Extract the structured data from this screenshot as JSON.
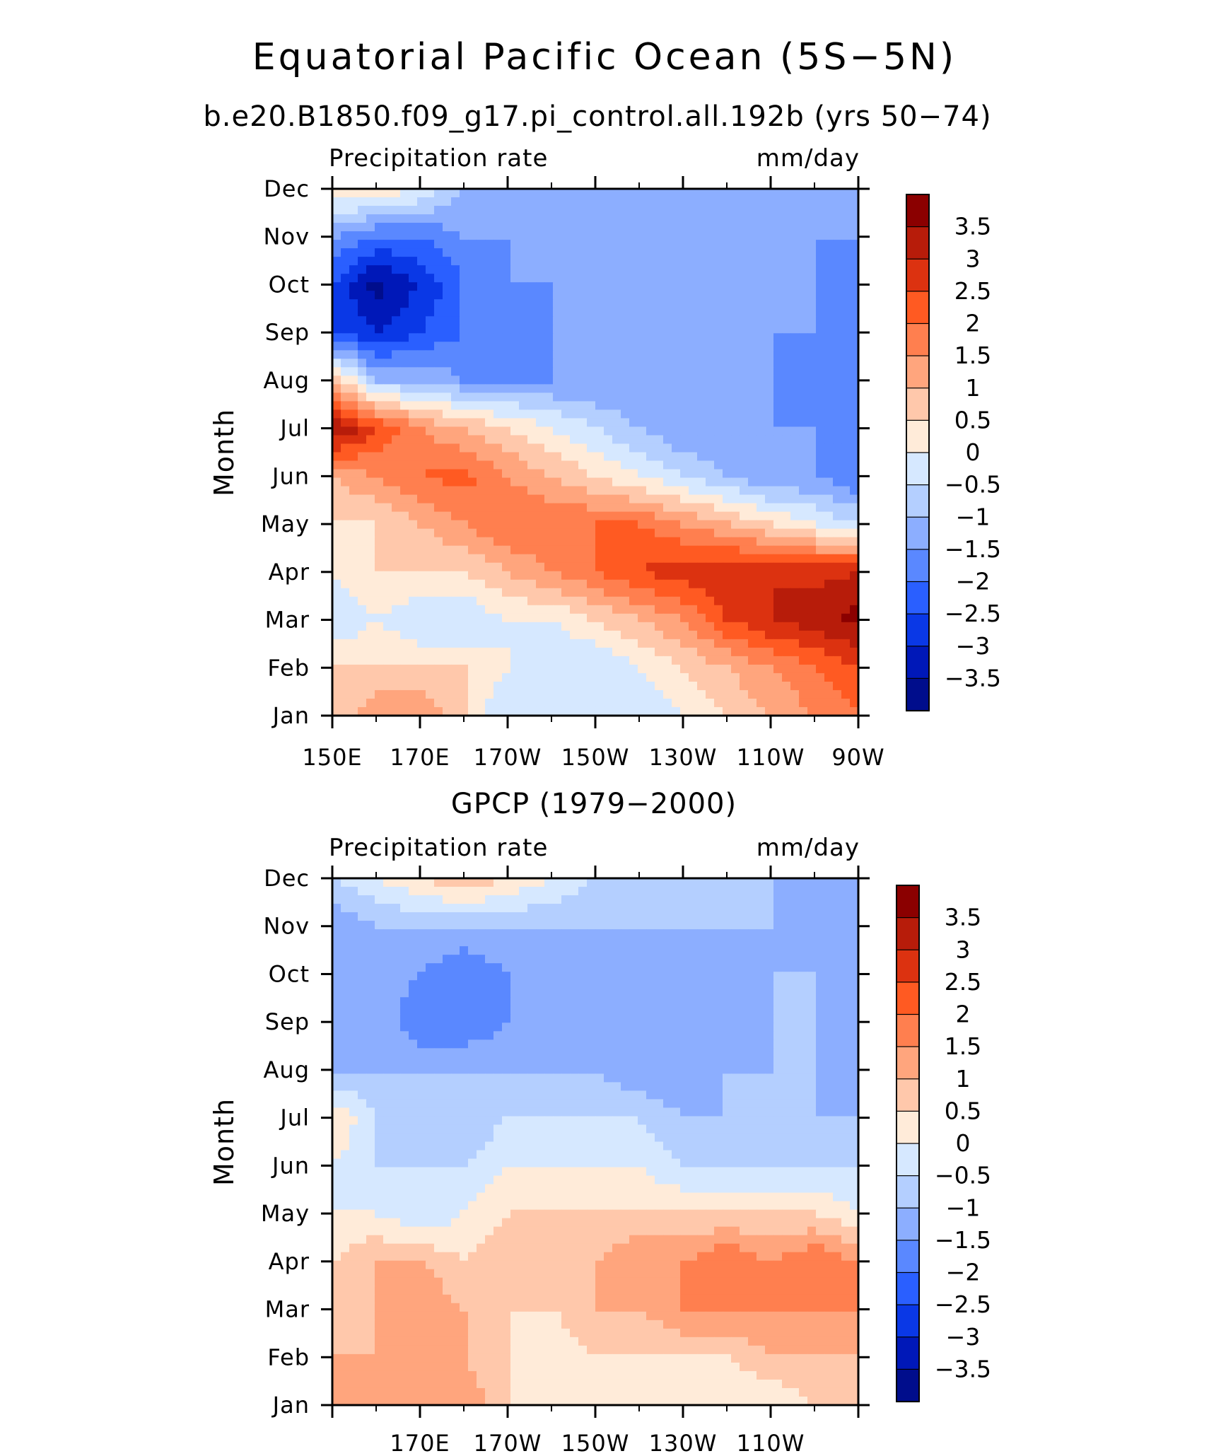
{
  "figure": {
    "title": "Equatorial Pacific Ocean (5S−5N)"
  },
  "colorbar": {
    "levels": [
      "3.5",
      "3",
      "2.5",
      "2",
      "1.5",
      "1",
      "0.5",
      "0",
      "−0.5",
      "−1",
      "−1.5",
      "−2",
      "−2.5",
      "−3",
      "−3.5"
    ],
    "colors": [
      "#8b0000",
      "#b71c0a",
      "#dc3210",
      "#ff5a22",
      "#ff7f4f",
      "#ffa57d",
      "#ffc8ab",
      "#ffebd9",
      "#d6e8ff",
      "#b4cfff",
      "#8caeff",
      "#5a88ff",
      "#2a5fff",
      "#0a38e6",
      "#0018b8",
      "#000d8c"
    ]
  },
  "chart_data": [
    {
      "type": "heatmap",
      "subtitle": "b.e20.B1850.f09_g17.pi_control.all.192b (yrs 50−74)",
      "left_label": "Precipitation rate",
      "right_label": "mm/day",
      "ylabel": "Month",
      "xlabel": "",
      "x_ticklabels": [
        "150E",
        "170E",
        "170W",
        "150W",
        "130W",
        "110W",
        "90W"
      ],
      "y_ticklabels": [
        "Jan",
        "Feb",
        "Mar",
        "Apr",
        "May",
        "Jun",
        "Jul",
        "Aug",
        "Sep",
        "Oct",
        "Nov",
        "Dec"
      ],
      "x_longitudes": [
        150,
        160,
        170,
        180,
        190,
        200,
        210,
        220,
        230,
        240,
        250,
        260,
        270
      ],
      "z_units": "mm/day",
      "z": [
        [
          0.5,
          1.5,
          1.5,
          0.5,
          -0.5,
          -0.5,
          -0.5,
          -0.5,
          0,
          0.5,
          1.0,
          1.5,
          2.0
        ],
        [
          0.5,
          0.5,
          0.5,
          0.5,
          0,
          -0.5,
          -0.5,
          0,
          0.5,
          1.0,
          1.5,
          2.0,
          2.5
        ],
        [
          -0.5,
          0,
          -0.5,
          -0.5,
          0,
          0,
          0.5,
          1.0,
          1.5,
          2.5,
          3.0,
          3.3,
          3.7
        ],
        [
          0,
          0.5,
          0.5,
          0.5,
          1.0,
          1.5,
          2.0,
          2.5,
          2.8,
          3.0,
          3.0,
          2.8,
          3.0
        ],
        [
          0.5,
          0.5,
          1.0,
          1.5,
          2.0,
          2.0,
          2.0,
          2.0,
          1.5,
          1.0,
          0.5,
          0,
          -0.5
        ],
        [
          1.0,
          1.5,
          2.0,
          2.2,
          1.5,
          1.0,
          0.5,
          0,
          -0.5,
          -1.0,
          -1.5,
          -1.5,
          -2.0
        ],
        [
          3.7,
          2.5,
          1.5,
          1.0,
          0.5,
          0,
          -0.5,
          -1.0,
          -1.5,
          -1.5,
          -1.5,
          -1.5,
          -2.0
        ],
        [
          1.0,
          -1.0,
          -1.0,
          -1.5,
          -1.5,
          -1.5,
          -1.5,
          -1.5,
          -1.5,
          -1.5,
          -1.5,
          -2.0,
          -2.0
        ],
        [
          -2.5,
          -3.0,
          -2.5,
          -2.0,
          -2.0,
          -1.5,
          -1.5,
          -1.5,
          -1.5,
          -1.5,
          -1.5,
          -1.5,
          -2.0
        ],
        [
          -2.5,
          -3.7,
          -3.0,
          -2.0,
          -1.5,
          -1.5,
          -1.5,
          -1.5,
          -1.5,
          -1.5,
          -1.5,
          -1.5,
          -2.0
        ],
        [
          -1.5,
          -2.0,
          -2.0,
          -1.5,
          -1.5,
          -1.5,
          -1.5,
          -1.5,
          -1.5,
          -1.5,
          -1.5,
          -1.5,
          -1.5
        ],
        [
          0.5,
          0.5,
          0,
          -1.0,
          -1.0,
          -1.0,
          -1.0,
          -1.5,
          -1.5,
          -1.5,
          -1.5,
          -1.5,
          -1.5
        ]
      ]
    },
    {
      "type": "heatmap",
      "subtitle": "GPCP (1979−2000)",
      "left_label": "Precipitation rate",
      "right_label": "mm/day",
      "ylabel": "Month",
      "xlabel": "",
      "x_ticklabels": [
        "170E",
        "170W",
        "150W",
        "130W",
        "110W"
      ],
      "y_ticklabels": [
        "Jan",
        "Feb",
        "Mar",
        "Apr",
        "May",
        "Jun",
        "Jul",
        "Aug",
        "Sep",
        "Oct",
        "Nov",
        "Dec"
      ],
      "x_longitudes": [
        150,
        160,
        170,
        180,
        190,
        200,
        210,
        220,
        230,
        240,
        250,
        260,
        270
      ],
      "z_units": "mm/day",
      "z": [
        [
          1.0,
          1.0,
          1.5,
          1.5,
          0.5,
          0,
          0,
          0,
          0,
          0,
          0,
          0.5,
          0.5
        ],
        [
          1.0,
          1.0,
          1.0,
          1.0,
          0.5,
          0,
          0.5,
          0.5,
          0.5,
          0.5,
          1.0,
          1.0,
          1.0
        ],
        [
          0.5,
          1.0,
          1.5,
          1.0,
          0.5,
          0.5,
          1.0,
          1.0,
          1.5,
          1.5,
          1.5,
          1.5,
          1.5
        ],
        [
          0.5,
          1.0,
          1.0,
          0.5,
          1.0,
          1.0,
          1.0,
          1.5,
          1.5,
          2.0,
          1.5,
          2.0,
          1.5
        ],
        [
          0,
          0,
          -0.5,
          0,
          0.5,
          0.5,
          0.5,
          0.5,
          0.5,
          0.5,
          0.5,
          0.5,
          0
        ],
        [
          0,
          -0.5,
          -0.5,
          -0.5,
          0,
          0,
          0,
          0,
          -0.5,
          -0.5,
          -0.5,
          -0.5,
          -0.5
        ],
        [
          0.5,
          -0.5,
          -1.0,
          -1.0,
          -0.5,
          -0.5,
          -0.5,
          -0.5,
          -1.0,
          -1.0,
          -1.0,
          -1.0,
          -1.0
        ],
        [
          -1.0,
          -1.0,
          -1.0,
          -1.0,
          -1.0,
          -1.0,
          -1.0,
          -1.5,
          -1.5,
          -1.0,
          -1.0,
          -1.0,
          -1.5
        ],
        [
          -1.5,
          -1.0,
          -2.0,
          -2.0,
          -1.5,
          -1.0,
          -1.5,
          -1.5,
          -1.5,
          -1.5,
          -1.0,
          -1.0,
          -1.5
        ],
        [
          -1.5,
          -1.0,
          -1.5,
          -2.0,
          -1.5,
          -1.0,
          -1.5,
          -1.5,
          -1.5,
          -1.5,
          -1.0,
          -1.0,
          -1.5
        ],
        [
          -1.5,
          -1.0,
          -1.0,
          -1.0,
          -1.0,
          -1.0,
          -1.0,
          -1.0,
          -1.0,
          -1.0,
          -1.0,
          -1.5,
          -1.5
        ],
        [
          -0.5,
          0,
          0.5,
          1.0,
          0.5,
          0,
          -0.5,
          -0.5,
          -0.5,
          -1.0,
          -1.0,
          -1.0,
          -1.0
        ]
      ]
    }
  ]
}
